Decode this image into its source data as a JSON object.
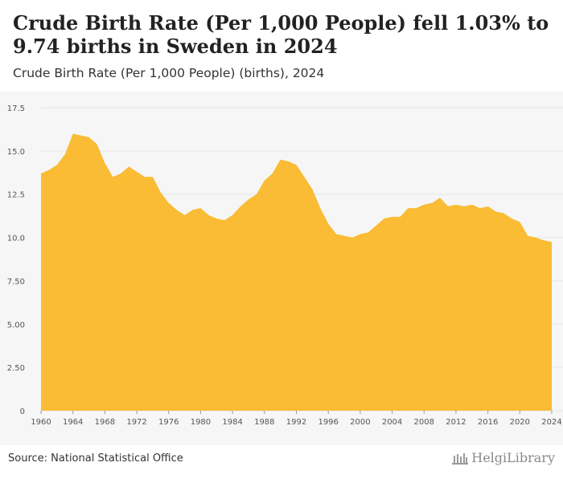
{
  "header": {
    "title": "Crude Birth Rate (Per 1,000 People) fell 1.03% to 9.74 births in Sweden in 2024",
    "subtitle": "Crude Birth Rate (Per 1,000 People) (births), 2024"
  },
  "footer": {
    "source": "Source: National Statistical Office",
    "logo_text": "HelgiLibrary"
  },
  "colors": {
    "area": "#f9bc34",
    "grid": "#e6e6e6",
    "plot_bg": "#f6f6f6"
  },
  "chart_data": {
    "type": "area",
    "title": "Crude Birth Rate (Per 1,000 People) fell 1.03% to 9.74 births in Sweden in 2024",
    "subtitle": "Crude Birth Rate (Per 1,000 People) (births), 2024",
    "xlim": [
      1960,
      2024
    ],
    "ylim": [
      0,
      17.5
    ],
    "x_ticks": [
      "1960",
      "1964",
      "1968",
      "1972",
      "1976",
      "1980",
      "1984",
      "1988",
      "1992",
      "1996",
      "2000",
      "2004",
      "2008",
      "2012",
      "2016",
      "2020",
      "2024"
    ],
    "y_ticks": [
      "0",
      "2.50",
      "5.00",
      "7.50",
      "10.0",
      "12.5",
      "15.0",
      "17.5"
    ],
    "grid": true,
    "legend": "none",
    "x": [
      1960,
      1961,
      1962,
      1963,
      1964,
      1965,
      1966,
      1967,
      1968,
      1969,
      1970,
      1971,
      1972,
      1973,
      1974,
      1975,
      1976,
      1977,
      1978,
      1979,
      1980,
      1981,
      1982,
      1983,
      1984,
      1985,
      1986,
      1987,
      1988,
      1989,
      1990,
      1991,
      1992,
      1993,
      1994,
      1995,
      1996,
      1997,
      1998,
      1999,
      2000,
      2001,
      2002,
      2003,
      2004,
      2005,
      2006,
      2007,
      2008,
      2009,
      2010,
      2011,
      2012,
      2013,
      2014,
      2015,
      2016,
      2017,
      2018,
      2019,
      2020,
      2021,
      2022,
      2023,
      2024
    ],
    "series": [
      {
        "values": [
          13.7,
          13.9,
          14.2,
          14.8,
          16.0,
          15.9,
          15.8,
          15.4,
          14.3,
          13.5,
          13.7,
          14.1,
          13.8,
          13.5,
          13.5,
          12.6,
          12.0,
          11.6,
          11.3,
          11.6,
          11.7,
          11.3,
          11.1,
          11.0,
          11.3,
          11.8,
          12.2,
          12.5,
          13.3,
          13.7,
          14.5,
          14.4,
          14.2,
          13.5,
          12.8,
          11.7,
          10.8,
          10.2,
          10.1,
          10.0,
          10.2,
          10.3,
          10.7,
          11.1,
          11.2,
          11.2,
          11.7,
          11.7,
          11.9,
          12.0,
          12.3,
          11.8,
          11.9,
          11.8,
          11.9,
          11.7,
          11.8,
          11.5,
          11.4,
          11.1,
          10.9,
          10.1,
          10.0,
          9.84,
          9.74
        ]
      }
    ]
  }
}
